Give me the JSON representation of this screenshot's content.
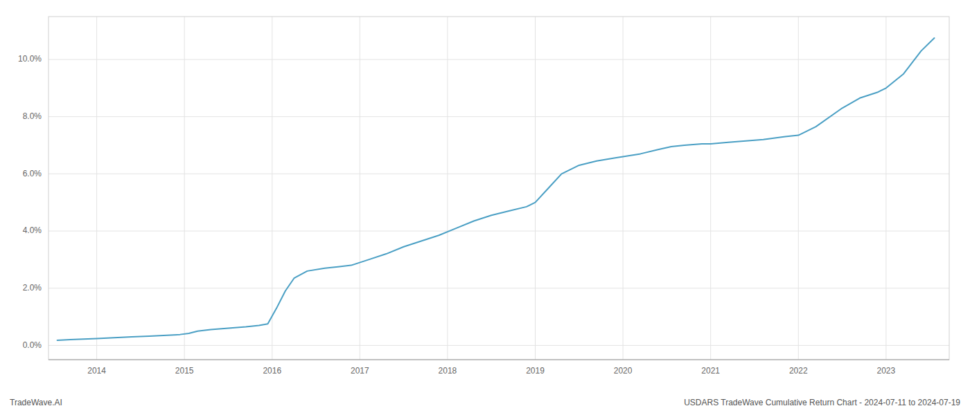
{
  "chart_data": {
    "type": "line",
    "color": "#4a9fc4",
    "grid": true,
    "annotations": [
      "TradeWave.AI",
      "USDARS TradeWave Cumulative Return Chart - 2024-07-11 to 2024-07-19"
    ],
    "x": [
      2013.55,
      2013.7,
      2013.85,
      2014.0,
      2014.2,
      2014.4,
      2014.6,
      2014.8,
      2014.95,
      2015.05,
      2015.15,
      2015.3,
      2015.5,
      2015.7,
      2015.85,
      2015.95,
      2016.05,
      2016.15,
      2016.25,
      2016.4,
      2016.6,
      2016.75,
      2016.9,
      2017.1,
      2017.3,
      2017.5,
      2017.7,
      2017.9,
      2018.1,
      2018.3,
      2018.5,
      2018.7,
      2018.9,
      2019.0,
      2019.15,
      2019.3,
      2019.5,
      2019.7,
      2019.9,
      2020.0,
      2020.2,
      2020.4,
      2020.55,
      2020.7,
      2020.9,
      2021.0,
      2021.2,
      2021.4,
      2021.6,
      2021.85,
      2022.0,
      2022.2,
      2022.5,
      2022.7,
      2022.9,
      2023.0,
      2023.2,
      2023.4,
      2023.55
    ],
    "values": [
      0.18,
      0.2,
      0.22,
      0.24,
      0.27,
      0.3,
      0.32,
      0.35,
      0.38,
      0.42,
      0.5,
      0.55,
      0.6,
      0.65,
      0.7,
      0.75,
      1.3,
      1.9,
      2.35,
      2.6,
      2.7,
      2.75,
      2.8,
      3.0,
      3.2,
      3.45,
      3.65,
      3.85,
      4.1,
      4.35,
      4.55,
      4.7,
      4.85,
      5.0,
      5.5,
      6.0,
      6.3,
      6.45,
      6.55,
      6.6,
      6.7,
      6.85,
      6.95,
      7.0,
      7.05,
      7.05,
      7.1,
      7.15,
      7.2,
      7.3,
      7.35,
      7.65,
      8.3,
      8.65,
      8.85,
      9.0,
      9.5,
      10.3,
      10.75
    ],
    "xlim": [
      2013.45,
      2023.72
    ],
    "ylim": [
      -0.5,
      11.5
    ],
    "xticks": [
      2014,
      2015,
      2016,
      2017,
      2018,
      2019,
      2020,
      2021,
      2022,
      2023
    ],
    "yticks": [
      {
        "value": 0.0,
        "label": "0.0%"
      },
      {
        "value": 2.0,
        "label": "2.0%"
      },
      {
        "value": 4.0,
        "label": "4.0%"
      },
      {
        "value": 6.0,
        "label": "6.0%"
      },
      {
        "value": 8.0,
        "label": "8.0%"
      },
      {
        "value": 10.0,
        "label": "10.0%"
      }
    ]
  }
}
